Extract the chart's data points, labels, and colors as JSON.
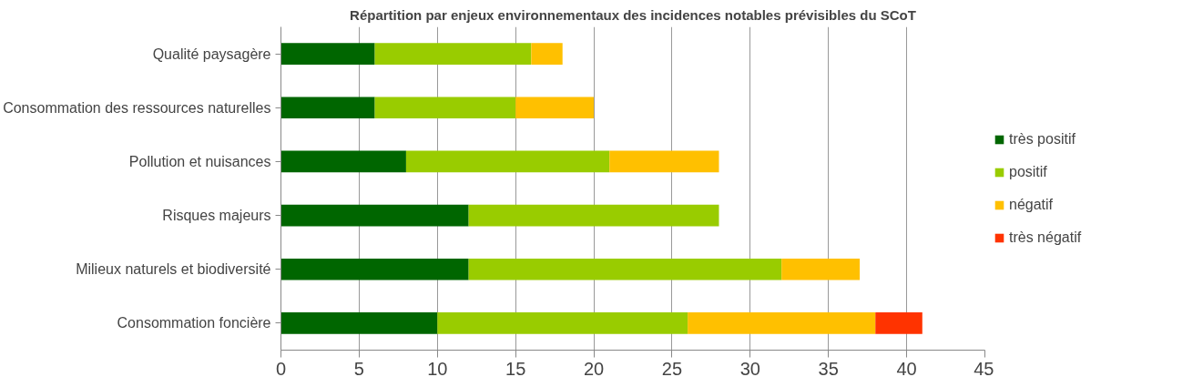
{
  "chart_data": {
    "type": "bar",
    "orientation": "horizontal",
    "stacked": true,
    "title": "Répartition par enjeux environnementaux des incidences notables prévisibles du SCoT",
    "categories": [
      "Qualité paysagère",
      "Consommation des ressources naturelles",
      "Pollution et nuisances",
      "Risques majeurs",
      "Milieux naturels et biodiversité",
      "Consommation foncière"
    ],
    "series": [
      {
        "name": "très positif",
        "color": "#006600",
        "values": [
          6,
          6,
          8,
          12,
          12,
          10
        ]
      },
      {
        "name": "positif",
        "color": "#99cc00",
        "values": [
          10,
          9,
          13,
          16,
          20,
          16
        ]
      },
      {
        "name": "négatif",
        "color": "#ffc000",
        "values": [
          2,
          5,
          7,
          null,
          5,
          12
        ]
      },
      {
        "name": "très négatif",
        "color": "#ff3300",
        "values": [
          null,
          null,
          null,
          null,
          null,
          3
        ]
      }
    ],
    "xlim": [
      0,
      45
    ],
    "xticks": [
      0,
      5,
      10,
      15,
      20,
      25,
      30,
      35,
      40,
      45
    ],
    "grid": "x",
    "legend": "right"
  }
}
